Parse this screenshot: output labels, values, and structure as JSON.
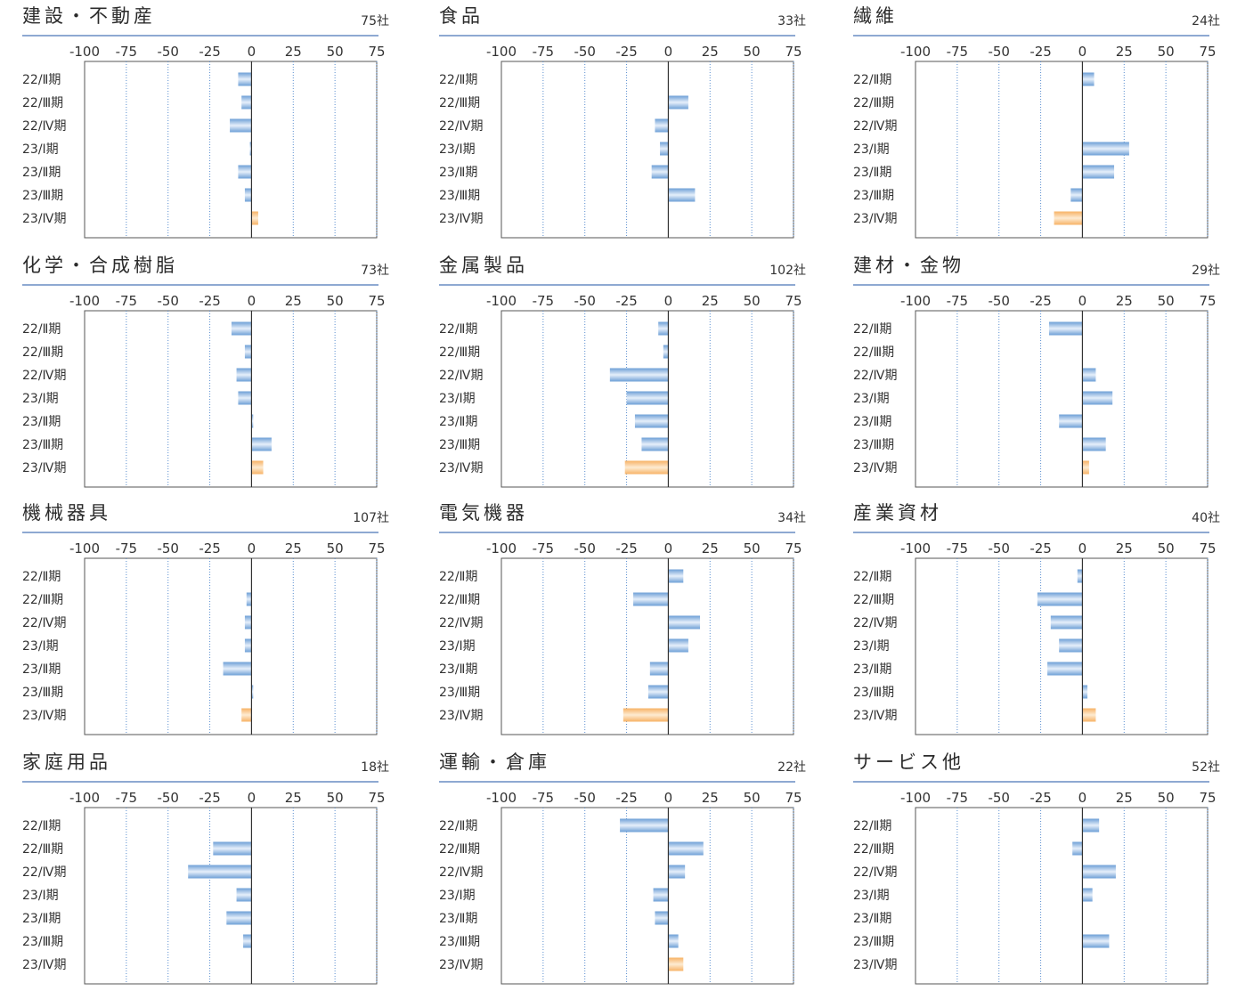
{
  "colors": {
    "bar_blue": "#6d9fd6",
    "bar_highlight": "#f7b265",
    "title_line": "#8ea9d2",
    "grid": "#5a8fd0",
    "frame": "#555555"
  },
  "chart_data": [
    {
      "type": "bar",
      "orientation": "horizontal",
      "title": "建設・不動産",
      "count": "75社",
      "categories": [
        "22/Ⅱ期",
        "22/Ⅲ期",
        "22/Ⅳ期",
        "23/Ⅰ期",
        "23/Ⅱ期",
        "23/Ⅲ期",
        "23/Ⅳ期"
      ],
      "values": [
        -8,
        -6,
        -13,
        -1,
        -8,
        -4,
        4
      ],
      "xticks": [
        -100,
        -75,
        -50,
        -25,
        0,
        25,
        50,
        75
      ],
      "xlim": [
        -100,
        75
      ],
      "highlight_last": true
    },
    {
      "type": "bar",
      "orientation": "horizontal",
      "title": "食品",
      "count": "33社",
      "categories": [
        "22/Ⅱ期",
        "22/Ⅲ期",
        "22/Ⅳ期",
        "23/Ⅰ期",
        "23/Ⅱ期",
        "23/Ⅲ期",
        "23/Ⅳ期"
      ],
      "values": [
        0,
        12,
        -8,
        -5,
        -10,
        16,
        0
      ],
      "xticks": [
        -100,
        -75,
        -50,
        -25,
        0,
        25,
        50,
        75
      ],
      "xlim": [
        -100,
        75
      ],
      "highlight_last": true
    },
    {
      "type": "bar",
      "orientation": "horizontal",
      "title": "繊維",
      "count": "24社",
      "categories": [
        "22/Ⅱ期",
        "22/Ⅲ期",
        "22/Ⅳ期",
        "23/Ⅰ期",
        "23/Ⅱ期",
        "23/Ⅲ期",
        "23/Ⅳ期"
      ],
      "values": [
        7,
        0,
        0,
        28,
        19,
        -7,
        -17
      ],
      "xticks": [
        -100,
        -75,
        -50,
        -25,
        0,
        25,
        50,
        75
      ],
      "xlim": [
        -100,
        75
      ],
      "highlight_last": true
    },
    {
      "type": "bar",
      "orientation": "horizontal",
      "title": "化学・合成樹脂",
      "count": "73社",
      "categories": [
        "22/Ⅱ期",
        "22/Ⅲ期",
        "22/Ⅳ期",
        "23/Ⅰ期",
        "23/Ⅱ期",
        "23/Ⅲ期",
        "23/Ⅳ期"
      ],
      "values": [
        -12,
        -4,
        -9,
        -8,
        1,
        12,
        7
      ],
      "xticks": [
        -100,
        -75,
        -50,
        -25,
        0,
        25,
        50,
        75
      ],
      "xlim": [
        -100,
        75
      ],
      "highlight_last": true
    },
    {
      "type": "bar",
      "orientation": "horizontal",
      "title": "金属製品",
      "count": "102社",
      "categories": [
        "22/Ⅱ期",
        "22/Ⅲ期",
        "22/Ⅳ期",
        "23/Ⅰ期",
        "23/Ⅱ期",
        "23/Ⅲ期",
        "23/Ⅳ期"
      ],
      "values": [
        -6,
        -3,
        -35,
        -25,
        -20,
        -16,
        -26
      ],
      "xticks": [
        -100,
        -75,
        -50,
        -25,
        0,
        25,
        50,
        75
      ],
      "xlim": [
        -100,
        75
      ],
      "highlight_last": true
    },
    {
      "type": "bar",
      "orientation": "horizontal",
      "title": "建材・金物",
      "count": "29社",
      "categories": [
        "22/Ⅱ期",
        "22/Ⅲ期",
        "22/Ⅳ期",
        "23/Ⅰ期",
        "23/Ⅱ期",
        "23/Ⅲ期",
        "23/Ⅳ期"
      ],
      "values": [
        -20,
        0,
        8,
        18,
        -14,
        14,
        4
      ],
      "xticks": [
        -100,
        -75,
        -50,
        -25,
        0,
        25,
        50,
        75
      ],
      "xlim": [
        -100,
        75
      ],
      "highlight_last": true
    },
    {
      "type": "bar",
      "orientation": "horizontal",
      "title": "機械器具",
      "count": "107社",
      "categories": [
        "22/Ⅱ期",
        "22/Ⅲ期",
        "22/Ⅳ期",
        "23/Ⅰ期",
        "23/Ⅱ期",
        "23/Ⅲ期",
        "23/Ⅳ期"
      ],
      "values": [
        0,
        -3,
        -4,
        -4,
        -17,
        1,
        -6
      ],
      "xticks": [
        -100,
        -75,
        -50,
        -25,
        0,
        25,
        50,
        75
      ],
      "xlim": [
        -100,
        75
      ],
      "highlight_last": true
    },
    {
      "type": "bar",
      "orientation": "horizontal",
      "title": "電気機器",
      "count": "34社",
      "categories": [
        "22/Ⅱ期",
        "22/Ⅲ期",
        "22/Ⅳ期",
        "23/Ⅰ期",
        "23/Ⅱ期",
        "23/Ⅲ期",
        "23/Ⅳ期"
      ],
      "values": [
        9,
        -21,
        19,
        12,
        -11,
        -12,
        -27
      ],
      "xticks": [
        -100,
        -75,
        -50,
        -25,
        0,
        25,
        50,
        75
      ],
      "xlim": [
        -100,
        75
      ],
      "highlight_last": true
    },
    {
      "type": "bar",
      "orientation": "horizontal",
      "title": "産業資材",
      "count": "40社",
      "categories": [
        "22/Ⅱ期",
        "22/Ⅲ期",
        "22/Ⅳ期",
        "23/Ⅰ期",
        "23/Ⅱ期",
        "23/Ⅲ期",
        "23/Ⅳ期"
      ],
      "values": [
        -3,
        -27,
        -19,
        -14,
        -21,
        3,
        8
      ],
      "xticks": [
        -100,
        -75,
        -50,
        -25,
        0,
        25,
        50,
        75
      ],
      "xlim": [
        -100,
        75
      ],
      "highlight_last": true
    },
    {
      "type": "bar",
      "orientation": "horizontal",
      "title": "家庭用品",
      "count": "18社",
      "categories": [
        "22/Ⅱ期",
        "22/Ⅲ期",
        "22/Ⅳ期",
        "23/Ⅰ期",
        "23/Ⅱ期",
        "23/Ⅲ期",
        "23/Ⅳ期"
      ],
      "values": [
        0,
        -23,
        -38,
        -9,
        -15,
        -5,
        0
      ],
      "xticks": [
        -100,
        -75,
        -50,
        -25,
        0,
        25,
        50,
        75
      ],
      "xlim": [
        -100,
        75
      ],
      "highlight_last": true
    },
    {
      "type": "bar",
      "orientation": "horizontal",
      "title": "運輸・倉庫",
      "count": "22社",
      "categories": [
        "22/Ⅱ期",
        "22/Ⅲ期",
        "22/Ⅳ期",
        "23/Ⅰ期",
        "23/Ⅱ期",
        "23/Ⅲ期",
        "23/Ⅳ期"
      ],
      "values": [
        -29,
        21,
        10,
        -9,
        -8,
        6,
        9
      ],
      "xticks": [
        -100,
        -75,
        -50,
        -25,
        0,
        25,
        50,
        75
      ],
      "xlim": [
        -100,
        75
      ],
      "highlight_last": true
    },
    {
      "type": "bar",
      "orientation": "horizontal",
      "title": "サービス他",
      "count": "52社",
      "categories": [
        "22/Ⅱ期",
        "22/Ⅲ期",
        "22/Ⅳ期",
        "23/Ⅰ期",
        "23/Ⅱ期",
        "23/Ⅲ期",
        "23/Ⅳ期"
      ],
      "values": [
        10,
        -6,
        20,
        6,
        0,
        16,
        0
      ],
      "xticks": [
        -100,
        -75,
        -50,
        -25,
        0,
        25,
        50,
        75
      ],
      "xlim": [
        -100,
        75
      ],
      "highlight_last": true
    }
  ]
}
